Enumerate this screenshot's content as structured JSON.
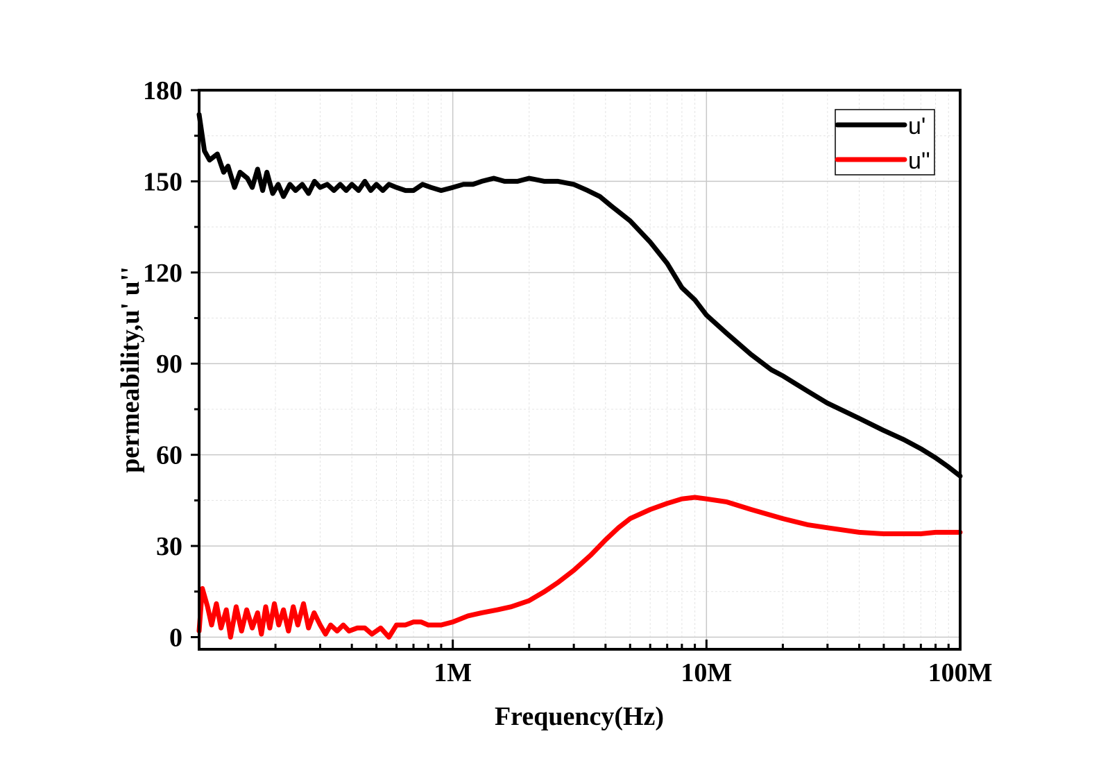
{
  "chart_data": {
    "type": "line",
    "title": "",
    "xlabel": "Frequency(Hz)",
    "ylabel": "permeability,u'  u''",
    "x_scale": "log",
    "xlim": [
      100000,
      100000000
    ],
    "ylim": [
      -4,
      180
    ],
    "x_ticks": [
      {
        "value": 1000000,
        "label": "1M"
      },
      {
        "value": 10000000,
        "label": "10M"
      },
      {
        "value": 100000000,
        "label": "100M"
      }
    ],
    "y_ticks": [
      {
        "value": 0,
        "label": "0"
      },
      {
        "value": 30,
        "label": "30"
      },
      {
        "value": 60,
        "label": "60"
      },
      {
        "value": 90,
        "label": "90"
      },
      {
        "value": 120,
        "label": "120"
      },
      {
        "value": 150,
        "label": "150"
      },
      {
        "value": 180,
        "label": "180"
      }
    ],
    "grid": true,
    "legend_position": "top-right",
    "series": [
      {
        "name": "u'",
        "color": "#000000",
        "points": [
          [
            100000,
            172
          ],
          [
            105000,
            160
          ],
          [
            110000,
            157
          ],
          [
            118000,
            159
          ],
          [
            125000,
            153
          ],
          [
            130000,
            155
          ],
          [
            138000,
            148
          ],
          [
            145000,
            153
          ],
          [
            155000,
            151
          ],
          [
            162000,
            148
          ],
          [
            170000,
            154
          ],
          [
            178000,
            147
          ],
          [
            185000,
            153
          ],
          [
            195000,
            146
          ],
          [
            205000,
            149
          ],
          [
            215000,
            145
          ],
          [
            228000,
            149
          ],
          [
            240000,
            147
          ],
          [
            255000,
            149
          ],
          [
            270000,
            146
          ],
          [
            285000,
            150
          ],
          [
            300000,
            148
          ],
          [
            320000,
            149
          ],
          [
            340000,
            147
          ],
          [
            360000,
            149
          ],
          [
            380000,
            147
          ],
          [
            400000,
            149
          ],
          [
            425000,
            147
          ],
          [
            450000,
            150
          ],
          [
            475000,
            147
          ],
          [
            500000,
            149
          ],
          [
            530000,
            147
          ],
          [
            560000,
            149
          ],
          [
            600000,
            148
          ],
          [
            650000,
            147
          ],
          [
            700000,
            147
          ],
          [
            760000,
            149
          ],
          [
            820000,
            148
          ],
          [
            900000,
            147
          ],
          [
            1000000,
            148
          ],
          [
            1100000,
            149
          ],
          [
            1200000,
            149
          ],
          [
            1300000,
            150
          ],
          [
            1450000,
            151
          ],
          [
            1600000,
            150
          ],
          [
            1800000,
            150
          ],
          [
            2000000,
            151
          ],
          [
            2300000,
            150
          ],
          [
            2600000,
            150
          ],
          [
            3000000,
            149
          ],
          [
            3400000,
            147
          ],
          [
            3800000,
            145
          ],
          [
            4200000,
            142
          ],
          [
            5000000,
            137
          ],
          [
            6000000,
            130
          ],
          [
            7000000,
            123
          ],
          [
            8000000,
            115
          ],
          [
            9000000,
            111
          ],
          [
            10000000,
            106
          ],
          [
            12000000,
            100
          ],
          [
            15000000,
            93
          ],
          [
            18000000,
            88
          ],
          [
            20000000,
            86
          ],
          [
            25000000,
            81
          ],
          [
            30000000,
            77
          ],
          [
            40000000,
            72
          ],
          [
            50000000,
            68
          ],
          [
            60000000,
            65
          ],
          [
            70000000,
            62
          ],
          [
            80000000,
            59
          ],
          [
            90000000,
            56
          ],
          [
            100000000,
            53
          ]
        ]
      },
      {
        "name": "u''",
        "color": "#ff0000",
        "points": [
          [
            100000,
            2
          ],
          [
            103000,
            16
          ],
          [
            108000,
            10
          ],
          [
            112000,
            4
          ],
          [
            117000,
            11
          ],
          [
            122000,
            3
          ],
          [
            128000,
            9
          ],
          [
            133000,
            0
          ],
          [
            140000,
            10
          ],
          [
            147000,
            2
          ],
          [
            154000,
            9
          ],
          [
            162000,
            3
          ],
          [
            170000,
            8
          ],
          [
            176000,
            1
          ],
          [
            183000,
            10
          ],
          [
            190000,
            3
          ],
          [
            198000,
            11
          ],
          [
            206000,
            4
          ],
          [
            215000,
            9
          ],
          [
            225000,
            2
          ],
          [
            235000,
            10
          ],
          [
            245000,
            4
          ],
          [
            258000,
            11
          ],
          [
            270000,
            3
          ],
          [
            284000,
            8
          ],
          [
            300000,
            4
          ],
          [
            315000,
            1
          ],
          [
            330000,
            4
          ],
          [
            350000,
            2
          ],
          [
            370000,
            4
          ],
          [
            390000,
            2
          ],
          [
            420000,
            3
          ],
          [
            450000,
            3
          ],
          [
            480000,
            1
          ],
          [
            520000,
            3
          ],
          [
            560000,
            0
          ],
          [
            600000,
            4
          ],
          [
            650000,
            4
          ],
          [
            700000,
            5
          ],
          [
            750000,
            5
          ],
          [
            800000,
            4
          ],
          [
            900000,
            4
          ],
          [
            1000000,
            5
          ],
          [
            1150000,
            7
          ],
          [
            1300000,
            8
          ],
          [
            1500000,
            9
          ],
          [
            1700000,
            10
          ],
          [
            2000000,
            12
          ],
          [
            2300000,
            15
          ],
          [
            2600000,
            18
          ],
          [
            3000000,
            22
          ],
          [
            3500000,
            27
          ],
          [
            4000000,
            32
          ],
          [
            4500000,
            36
          ],
          [
            5000000,
            39
          ],
          [
            6000000,
            42
          ],
          [
            7000000,
            44
          ],
          [
            8000000,
            45.5
          ],
          [
            9000000,
            46
          ],
          [
            10000000,
            45.5
          ],
          [
            12000000,
            44.5
          ],
          [
            15000000,
            42
          ],
          [
            20000000,
            39
          ],
          [
            25000000,
            37
          ],
          [
            30000000,
            36
          ],
          [
            40000000,
            34.5
          ],
          [
            50000000,
            34
          ],
          [
            60000000,
            34
          ],
          [
            70000000,
            34
          ],
          [
            80000000,
            34.5
          ],
          [
            100000000,
            34.5
          ]
        ]
      }
    ]
  }
}
